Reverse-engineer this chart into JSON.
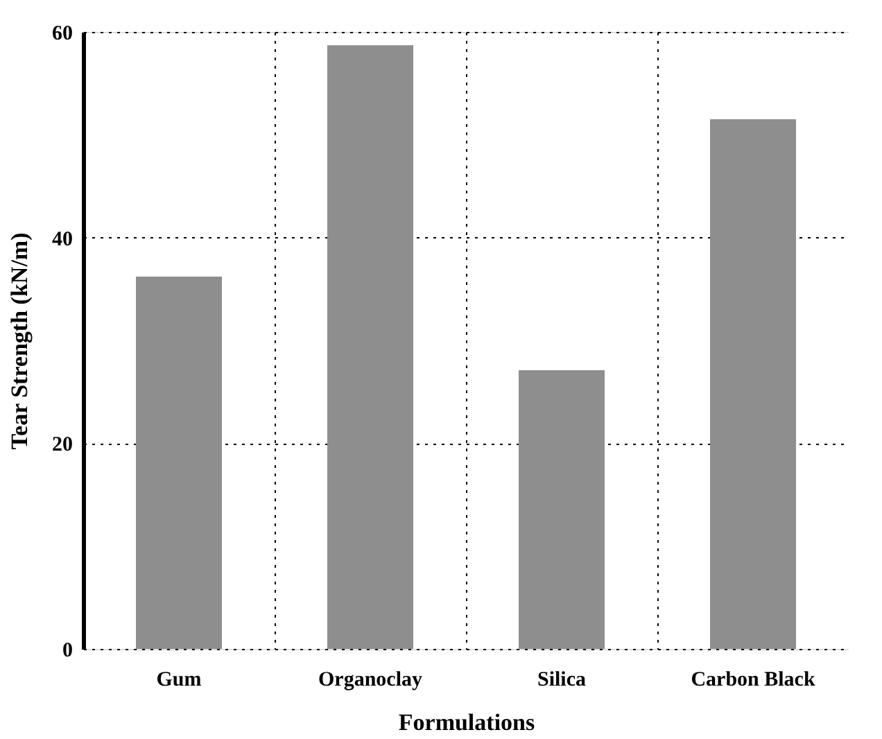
{
  "chart_data": {
    "type": "bar",
    "xlabel": "Formulations",
    "ylabel": "Tear Strength (kN/m)",
    "categories": [
      "Gum",
      "Organoclay",
      "Silica",
      "Carbon Black"
    ],
    "values": [
      36.2,
      58.7,
      27.1,
      51.5
    ],
    "color": "#8e8e8e",
    "ylim": [
      0,
      60
    ],
    "yticks": [
      0,
      20,
      40,
      60
    ],
    "grid": true
  }
}
